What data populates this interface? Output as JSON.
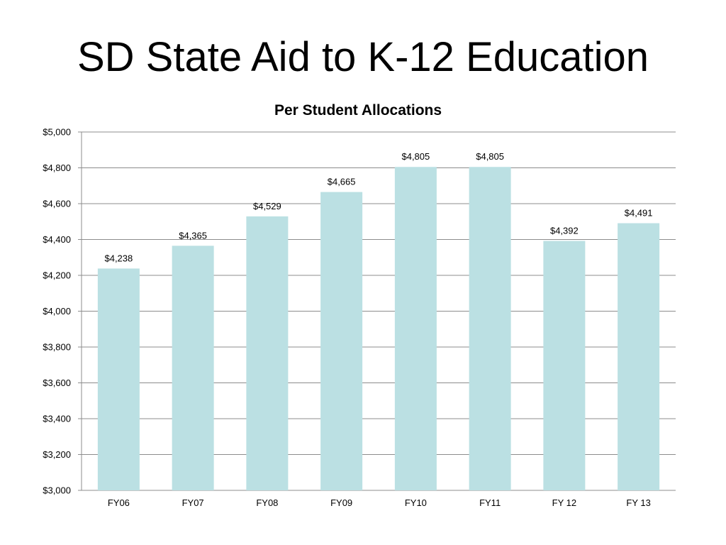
{
  "slide": {
    "title": "SD State Aid to K-12 Education"
  },
  "chart_data": {
    "type": "bar",
    "title": "Per Student Allocations",
    "xlabel": "",
    "ylabel": "",
    "categories": [
      "FY06",
      "FY07",
      "FY08",
      "FY09",
      "FY10",
      "FY11",
      "FY 12",
      "FY 13"
    ],
    "values": [
      4238,
      4365,
      4529,
      4665,
      4805,
      4805,
      4392,
      4491
    ],
    "data_labels": [
      "$4,238",
      "$4,365",
      "$4,529",
      "$4,665",
      "$4,805",
      "$4,805",
      "$4,392",
      "$4,491"
    ],
    "yticks": [
      3000,
      3200,
      3400,
      3600,
      3800,
      4000,
      4200,
      4400,
      4600,
      4800,
      5000
    ],
    "ytick_labels": [
      "$3,000",
      "$3,200",
      "$3,400",
      "$3,600",
      "$3,800",
      "$4,000",
      "$4,200",
      "$4,400",
      "$4,600",
      "$4,800",
      "$5,000"
    ],
    "ylim": [
      3000,
      5000
    ],
    "grid": true,
    "legend": "none",
    "colors": {
      "bar": "#bbe0e3",
      "grid": "#8c8c8c",
      "axis": "#8c8c8c"
    }
  }
}
